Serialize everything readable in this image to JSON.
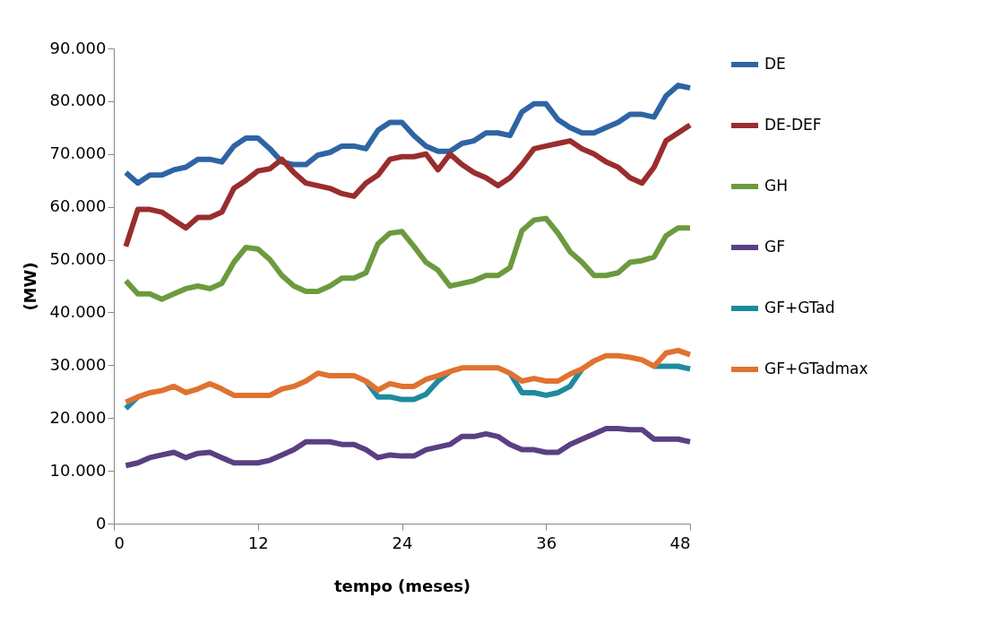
{
  "chart_data": {
    "type": "line",
    "xlabel": "tempo (meses)",
    "ylabel": "(MW)",
    "x": [
      1,
      2,
      3,
      4,
      5,
      6,
      7,
      8,
      9,
      10,
      11,
      12,
      13,
      14,
      15,
      16,
      17,
      18,
      19,
      20,
      21,
      22,
      23,
      24,
      25,
      26,
      27,
      28,
      29,
      30,
      31,
      32,
      33,
      34,
      35,
      36,
      37,
      38,
      39,
      40,
      41,
      42,
      43,
      44,
      45,
      46,
      47,
      48
    ],
    "xlim": [
      0,
      48
    ],
    "xticks": [
      0,
      12,
      24,
      36,
      48
    ],
    "ylim": [
      0,
      90000
    ],
    "yticks": [
      {
        "value": 0,
        "label": "0"
      },
      {
        "value": 10000,
        "label": "10.000"
      },
      {
        "value": 20000,
        "label": "20.000"
      },
      {
        "value": 30000,
        "label": "30.000"
      },
      {
        "value": 40000,
        "label": "40.000"
      },
      {
        "value": 50000,
        "label": "50.000"
      },
      {
        "value": 60000,
        "label": "60.000"
      },
      {
        "value": 70000,
        "label": "70.000"
      },
      {
        "value": 80000,
        "label": "80.000"
      },
      {
        "value": 90000,
        "label": "90.000"
      }
    ],
    "grid": false,
    "legend": "right",
    "marker": "none",
    "line_style": "solid",
    "series": [
      {
        "name": "DE",
        "color": "#2e64a4",
        "values": [
          66500,
          64500,
          66000,
          66000,
          67000,
          67500,
          69000,
          69000,
          68500,
          71500,
          73000,
          73000,
          71000,
          68500,
          68000,
          68000,
          69800,
          70300,
          71500,
          71500,
          71000,
          74500,
          76000,
          76000,
          73500,
          71500,
          70500,
          70500,
          72000,
          72500,
          74000,
          74000,
          73500,
          78000,
          79500,
          79500,
          76500,
          75000,
          74000,
          74000,
          75000,
          76000,
          77500,
          77500,
          77000,
          81000,
          83000,
          82500
        ]
      },
      {
        "name": "DE-DEF",
        "color": "#9a2d2d",
        "values": [
          52500,
          59500,
          59500,
          59000,
          57500,
          56000,
          58000,
          58000,
          59000,
          63500,
          65000,
          66800,
          67200,
          69000,
          66500,
          64500,
          64000,
          63500,
          62500,
          62000,
          64500,
          66000,
          69000,
          69500,
          69500,
          70000,
          67000,
          70000,
          68000,
          66500,
          65500,
          64000,
          65500,
          68000,
          71000,
          71500,
          72000,
          72500,
          71000,
          70000,
          68500,
          67500,
          65500,
          64500,
          67500,
          72500,
          74000,
          75500
        ]
      },
      {
        "name": "GH",
        "color": "#6c9a3e",
        "values": [
          46000,
          43500,
          43500,
          42500,
          43500,
          44500,
          45000,
          44500,
          45500,
          49500,
          52300,
          52000,
          50000,
          47000,
          45000,
          44000,
          44000,
          45000,
          46500,
          46500,
          47500,
          53000,
          55000,
          55300,
          52500,
          49500,
          48000,
          45000,
          45500,
          46000,
          47000,
          47000,
          48500,
          55500,
          57500,
          57800,
          55000,
          51500,
          49500,
          47000,
          47000,
          47500,
          49500,
          49800,
          50500,
          54500,
          56000,
          56000
        ]
      },
      {
        "name": "GF",
        "color": "#5a3f82",
        "values": [
          11000,
          11500,
          12500,
          13000,
          13500,
          12500,
          13300,
          13500,
          12500,
          11500,
          11500,
          11500,
          12000,
          13000,
          14000,
          15500,
          15500,
          15500,
          15000,
          15000,
          14000,
          12500,
          13000,
          12800,
          12800,
          14000,
          14500,
          15000,
          16500,
          16500,
          17000,
          16500,
          15000,
          14000,
          14000,
          13500,
          13500,
          15000,
          16000,
          17000,
          18000,
          18000,
          17800,
          17800,
          16000,
          16000,
          16000,
          15500
        ]
      },
      {
        "name": "GF+GTad",
        "color": "#1e8a9e",
        "values": [
          21800,
          24000,
          null,
          null,
          null,
          null,
          null,
          null,
          null,
          null,
          null,
          null,
          null,
          null,
          null,
          null,
          null,
          null,
          null,
          null,
          27000,
          24000,
          24000,
          23500,
          23500,
          24500,
          27000,
          28800,
          null,
          null,
          null,
          null,
          28500,
          24800,
          24800,
          24300,
          24800,
          26000,
          29300,
          null,
          null,
          null,
          null,
          null,
          29800,
          29800,
          29800,
          29300
        ]
      },
      {
        "name": "GF+GTadmax",
        "color": "#e07230",
        "values": [
          23000,
          24000,
          24800,
          25200,
          26000,
          24800,
          25500,
          26500,
          25500,
          24300,
          24300,
          24300,
          24300,
          25500,
          26000,
          27000,
          28500,
          28000,
          28000,
          28000,
          27000,
          25300,
          26500,
          26000,
          26000,
          27300,
          28000,
          28800,
          29500,
          29500,
          29500,
          29500,
          28500,
          27000,
          27500,
          27000,
          27000,
          28300,
          29300,
          30800,
          31800,
          31800,
          31500,
          31000,
          29800,
          32300,
          32800,
          32000
        ]
      }
    ]
  }
}
